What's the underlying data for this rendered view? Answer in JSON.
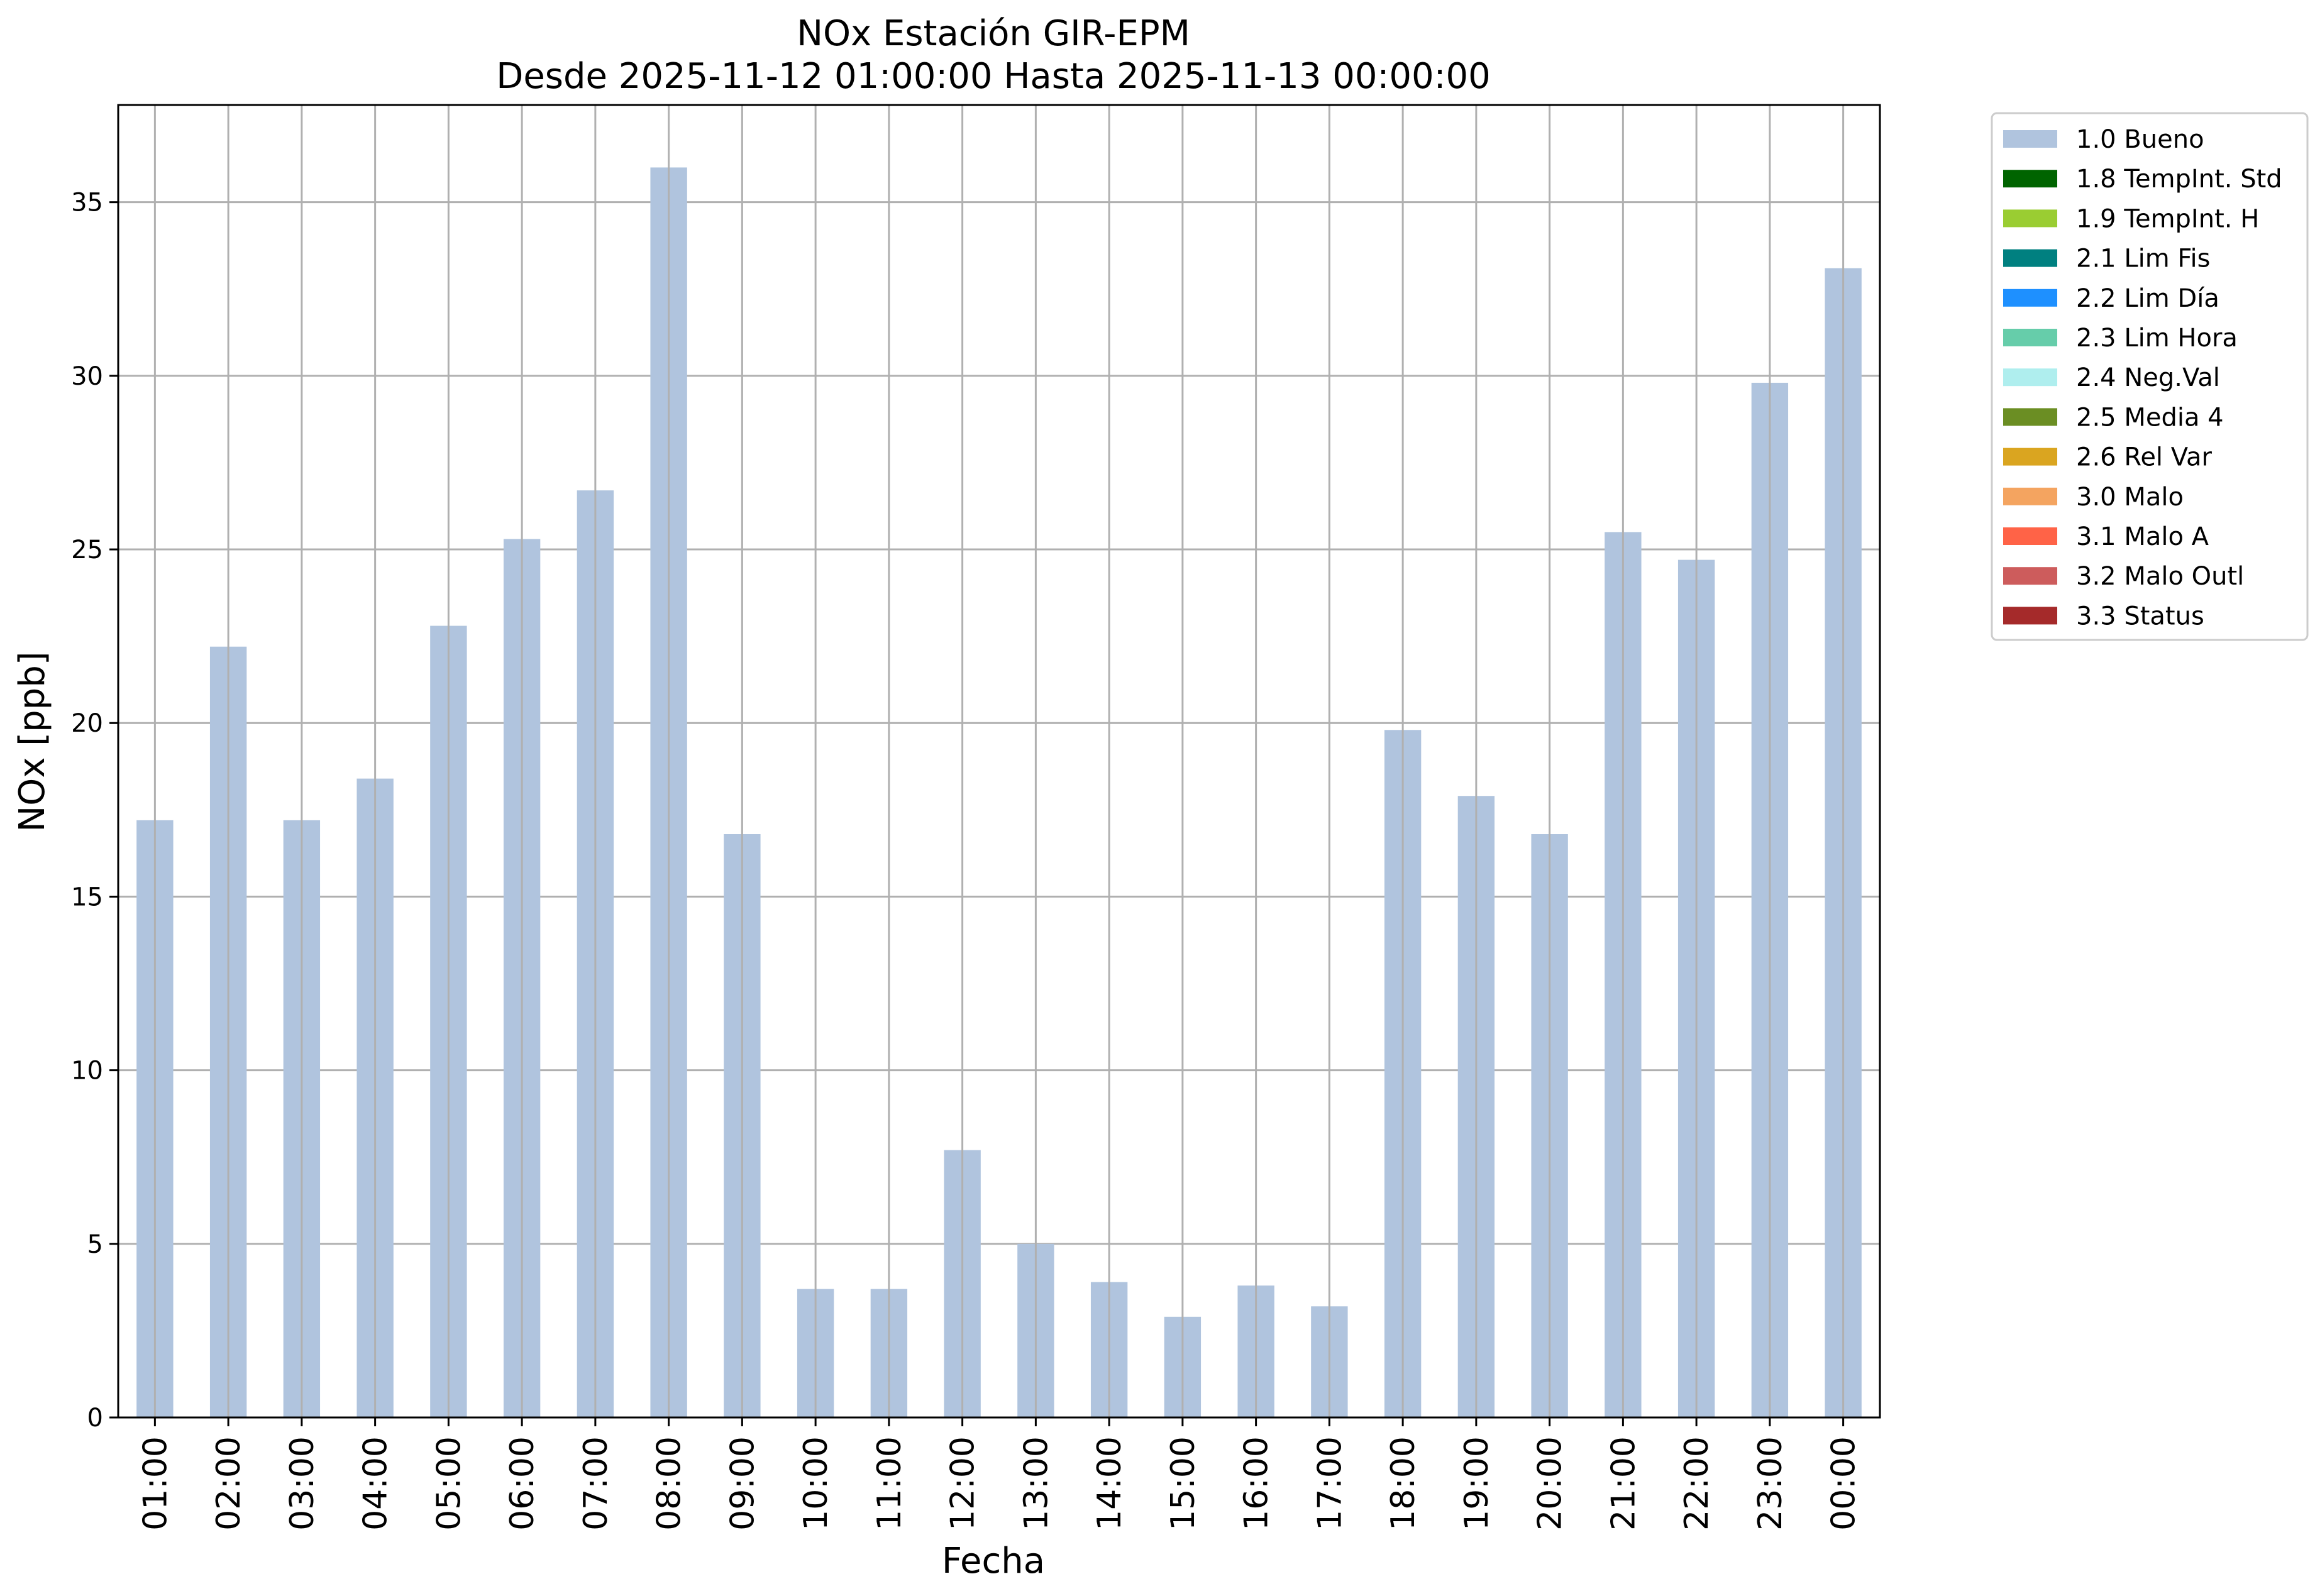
{
  "chart_data": {
    "type": "bar",
    "title": "NOx Estación GIR-EPM",
    "subtitle": "Desde 2025-11-12 01:00:00 Hasta 2025-11-13 00:00:00",
    "xlabel": "Fecha",
    "ylabel": "NOx [ppb]",
    "ylim": [
      0,
      37.8
    ],
    "yticks": [
      0,
      5,
      10,
      15,
      20,
      25,
      30,
      35
    ],
    "grid": true,
    "legend_position": "outside-top-right",
    "categories": [
      "01:00",
      "02:00",
      "03:00",
      "04:00",
      "05:00",
      "06:00",
      "07:00",
      "08:00",
      "09:00",
      "10:00",
      "11:00",
      "12:00",
      "13:00",
      "14:00",
      "15:00",
      "16:00",
      "17:00",
      "18:00",
      "19:00",
      "20:00",
      "21:00",
      "22:00",
      "23:00",
      "00:00"
    ],
    "series": [
      {
        "name": "1.0 Bueno",
        "color": "#b0c4de",
        "values": [
          17.2,
          22.2,
          17.2,
          18.4,
          22.8,
          25.3,
          26.7,
          36.0,
          16.8,
          3.7,
          3.7,
          7.7,
          5.0,
          3.9,
          2.9,
          3.8,
          3.2,
          19.8,
          17.9,
          16.8,
          25.5,
          24.7,
          29.8,
          33.1
        ]
      }
    ],
    "legend": [
      {
        "label": "1.0 Bueno",
        "color": "#b0c4de"
      },
      {
        "label": "1.8 TempInt. Std",
        "color": "#006400"
      },
      {
        "label": "1.9 TempInt. H",
        "color": "#9acd32"
      },
      {
        "label": "2.1 Lim Fis",
        "color": "#008080"
      },
      {
        "label": "2.2 Lim Día",
        "color": "#1e90ff"
      },
      {
        "label": "2.3 Lim Hora",
        "color": "#66cdaa"
      },
      {
        "label": "2.4 Neg.Val",
        "color": "#afeeee"
      },
      {
        "label": "2.5 Media 4",
        "color": "#6b8e23"
      },
      {
        "label": "2.6 Rel Var",
        "color": "#daa520"
      },
      {
        "label": "3.0 Malo",
        "color": "#f4a460"
      },
      {
        "label": "3.1 Malo A",
        "color": "#ff6347"
      },
      {
        "label": "3.2 Malo Outl",
        "color": "#cd5c5c"
      },
      {
        "label": "3.3 Status",
        "color": "#a52a2a"
      }
    ]
  }
}
